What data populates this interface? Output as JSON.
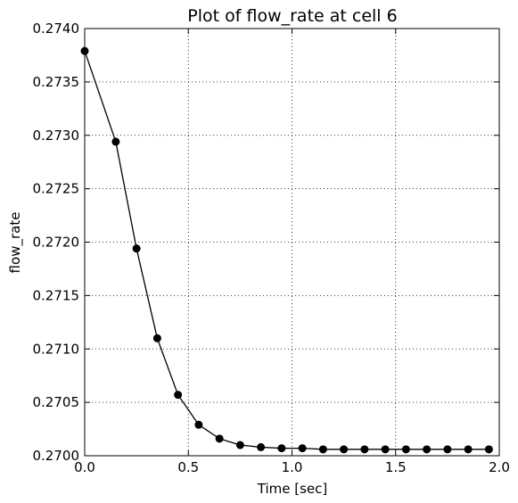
{
  "chart_data": {
    "type": "line",
    "title": "Plot of flow_rate at cell 6",
    "xlabel": "Time [sec]",
    "ylabel": "flow_rate",
    "xlim": [
      0.0,
      2.0
    ],
    "ylim": [
      0.27,
      0.274
    ],
    "grid": true,
    "x_ticks": [
      0.0,
      0.5,
      1.0,
      1.5,
      2.0
    ],
    "x_tick_labels": [
      "0.0",
      "0.5",
      "1.0",
      "1.5",
      "2.0"
    ],
    "y_ticks": [
      0.27,
      0.2705,
      0.271,
      0.2715,
      0.272,
      0.2725,
      0.273,
      0.2735,
      0.274
    ],
    "y_tick_labels": [
      "0.2700",
      "0.2705",
      "0.2710",
      "0.2715",
      "0.2720",
      "0.2725",
      "0.2730",
      "0.2735",
      "0.2740"
    ],
    "series": [
      {
        "name": "flow_rate",
        "color": "#000000",
        "marker": "circle",
        "x": [
          0.0,
          0.15,
          0.25,
          0.35,
          0.45,
          0.55,
          0.65,
          0.75,
          0.85,
          0.95,
          1.05,
          1.15,
          1.25,
          1.35,
          1.45,
          1.55,
          1.65,
          1.75,
          1.85,
          1.95
        ],
        "y": [
          0.27379,
          0.27294,
          0.27194,
          0.2711,
          0.27057,
          0.27029,
          0.27016,
          0.2701,
          0.27008,
          0.27007,
          0.27007,
          0.27006,
          0.27006,
          0.27006,
          0.27006,
          0.27006,
          0.27006,
          0.27006,
          0.27006,
          0.27006
        ]
      }
    ]
  }
}
